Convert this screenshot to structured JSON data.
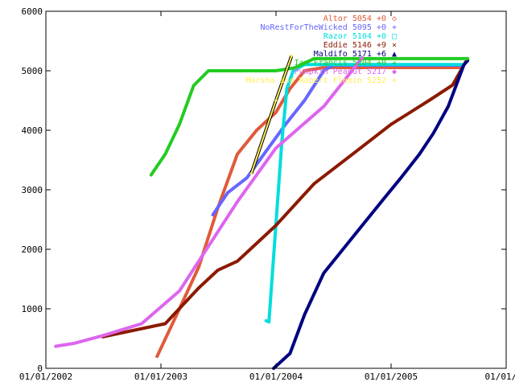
{
  "chart_data": {
    "type": "line",
    "title": "",
    "xlabel": "",
    "ylabel": "",
    "xlim": [
      "2002-01-01",
      "2006-01-01"
    ],
    "ylim": [
      0,
      6000
    ],
    "grid": false,
    "legend_placement": "top-right",
    "x_ticks": [
      "01/01/2002",
      "01/01/2003",
      "01/01/2004",
      "01/01/2005",
      "01/01/20"
    ],
    "y_ticks": [
      "0",
      "1000",
      "2000",
      "3000",
      "4000",
      "5000",
      "6000"
    ],
    "series": [
      {
        "name": "Altor",
        "legend": "Altor 5054 +0",
        "marker": "◇",
        "color": "#e05a3a",
        "points": [
          [
            "2002-12-20",
            200
          ],
          [
            "2003-03-01",
            1000
          ],
          [
            "2003-05-01",
            1700
          ],
          [
            "2003-07-01",
            2700
          ],
          [
            "2003-09-01",
            3600
          ],
          [
            "2003-11-01",
            4000
          ],
          [
            "2004-01-01",
            4300
          ],
          [
            "2004-02-15",
            4700
          ],
          [
            "2004-04-01",
            5000
          ],
          [
            "2004-06-01",
            5054
          ],
          [
            "2005-08-15",
            5054
          ]
        ]
      },
      {
        "name": "NoRestForTheWicked",
        "legend": "NoRestForTheWicked 5095 +0",
        "marker": "+",
        "color": "#6666ff",
        "points": [
          [
            "2003-06-15",
            2580
          ],
          [
            "2003-08-01",
            2950
          ],
          [
            "2003-10-01",
            3200
          ],
          [
            "2003-12-01",
            3650
          ],
          [
            "2004-02-01",
            4100
          ],
          [
            "2004-04-01",
            4500
          ],
          [
            "2004-06-01",
            5000
          ],
          [
            "2004-07-01",
            5095
          ],
          [
            "2005-08-15",
            5095
          ]
        ]
      },
      {
        "name": "Razor",
        "legend": "Razor 5104 +0",
        "marker": "□",
        "color": "#00dddd",
        "points": [
          [
            "2003-12-01",
            800
          ],
          [
            "2003-12-10",
            780
          ],
          [
            "2004-01-01",
            2400
          ],
          [
            "2004-01-20",
            3800
          ],
          [
            "2004-02-05",
            4700
          ],
          [
            "2004-02-25",
            5000
          ],
          [
            "2004-04-01",
            5104
          ],
          [
            "2005-08-15",
            5104
          ]
        ]
      },
      {
        "name": "Eddie",
        "legend": "Eddie 5146 +9",
        "marker": "×",
        "color": "#8b1a00",
        "points": [
          [
            "2002-07-01",
            530
          ],
          [
            "2003-01-15",
            750
          ],
          [
            "2003-05-01",
            1350
          ],
          [
            "2003-07-01",
            1650
          ],
          [
            "2003-09-01",
            1800
          ],
          [
            "2003-11-01",
            2100
          ],
          [
            "2004-01-01",
            2400
          ],
          [
            "2004-05-01",
            3100
          ],
          [
            "2004-09-01",
            3600
          ],
          [
            "2005-01-01",
            4100
          ],
          [
            "2005-05-01",
            4500
          ],
          [
            "2005-07-15",
            4760
          ],
          [
            "2005-08-25",
            5146
          ]
        ]
      },
      {
        "name": "Maldifo",
        "legend": "Maldifo 5171 +6",
        "marker": "▲",
        "color": "#000080",
        "points": [
          [
            "2003-12-25",
            0
          ],
          [
            "2004-02-15",
            250
          ],
          [
            "2004-04-01",
            900
          ],
          [
            "2004-06-01",
            1600
          ],
          [
            "2004-08-01",
            2000
          ],
          [
            "2004-10-01",
            2400
          ],
          [
            "2004-12-01",
            2800
          ],
          [
            "2005-02-01",
            3200
          ],
          [
            "2005-04-01",
            3600
          ],
          [
            "2005-05-15",
            3950
          ],
          [
            "2005-07-01",
            4400
          ],
          [
            "2005-08-20",
            5100
          ],
          [
            "2005-09-01",
            5171
          ]
        ]
      },
      {
        "name": "Ian Francis",
        "legend": "Ian Francis 5204 +0",
        "marker": "✳",
        "color": "#22cc22",
        "points": [
          [
            "2002-12-01",
            3250
          ],
          [
            "2003-01-15",
            3600
          ],
          [
            "2003-03-01",
            4100
          ],
          [
            "2003-04-15",
            4750
          ],
          [
            "2003-06-01",
            5000
          ],
          [
            "2004-01-01",
            5000
          ],
          [
            "2004-03-01",
            5050
          ],
          [
            "2004-05-01",
            5204
          ],
          [
            "2005-09-01",
            5204
          ]
        ]
      },
      {
        "name": "Pumpkin Peanut",
        "legend": "Pumpkin Peanut 5217",
        "marker": "◆",
        "color": "#dd66ee",
        "points": [
          [
            "2002-02-01",
            370
          ],
          [
            "2002-04-01",
            420
          ],
          [
            "2002-07-01",
            550
          ],
          [
            "2002-11-01",
            750
          ],
          [
            "2003-03-01",
            1300
          ],
          [
            "2003-09-01",
            2800
          ],
          [
            "2004-01-01",
            3700
          ],
          [
            "2004-06-01",
            4400
          ],
          [
            "2004-10-01",
            5217
          ]
        ]
      },
      {
        "name": "Marsha and Robert Fleming",
        "legend": "Marsha and Robert Flemin 5252",
        "marker": "+",
        "color": "#ffee55",
        "points": [
          [
            "2003-10-15",
            3270
          ],
          [
            "2004-01-01",
            4500
          ],
          [
            "2004-02-20",
            5252
          ]
        ]
      }
    ]
  }
}
